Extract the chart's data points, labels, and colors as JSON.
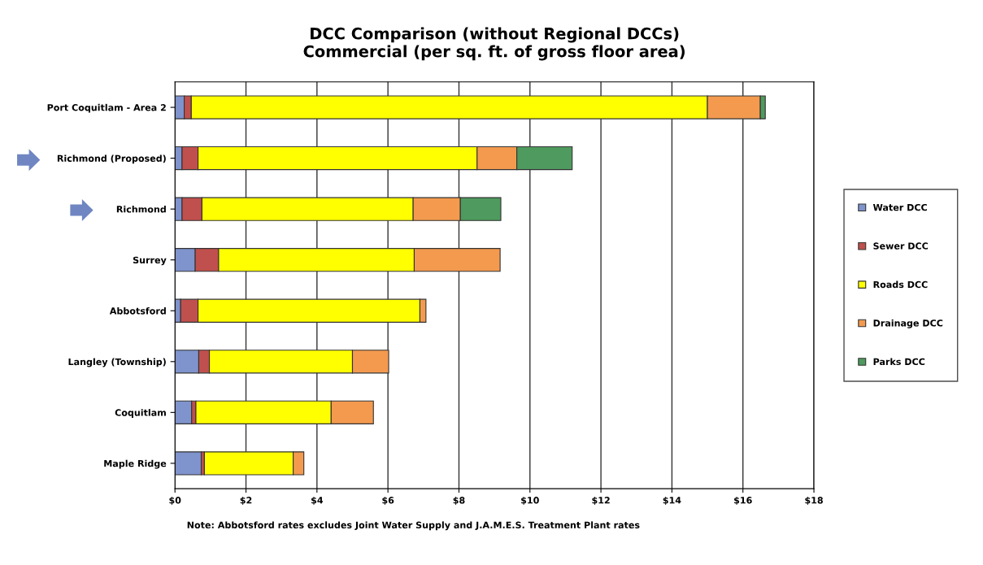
{
  "chart_data": {
    "type": "bar",
    "orientation": "horizontal",
    "stacked": true,
    "title": "DCC Comparison (without Regional DCCs)\nCommercial (per sq. ft. of gross floor area)",
    "categories": [
      "Port Coquitlam - Area 2",
      "Richmond (Proposed)",
      "Richmond",
      "Surrey",
      "Abbotsford",
      "Langley (Township)",
      "Coquitlam",
      "Maple Ridge"
    ],
    "series": [
      {
        "name": "Water DCC",
        "color": "#7f93cc",
        "values": [
          0.26,
          0.2,
          0.2,
          0.57,
          0.16,
          0.67,
          0.47,
          0.74
        ]
      },
      {
        "name": "Sewer DCC",
        "color": "#c0504d",
        "values": [
          0.2,
          0.45,
          0.56,
          0.66,
          0.49,
          0.3,
          0.12,
          0.09
        ]
      },
      {
        "name": "Roads DCC",
        "color": "#ffff00",
        "values": [
          14.54,
          7.86,
          5.95,
          5.51,
          6.25,
          4.03,
          3.81,
          2.5
        ]
      },
      {
        "name": "Drainage DCC",
        "color": "#f39a4f",
        "values": [
          1.49,
          1.12,
          1.33,
          2.42,
          0.17,
          1.02,
          1.19,
          0.3
        ]
      },
      {
        "name": "Parks DCC",
        "color": "#4f9a5e",
        "values": [
          0.14,
          1.56,
          1.14,
          null,
          null,
          null,
          null,
          null
        ]
      }
    ],
    "xlim": [
      0,
      18
    ],
    "xticks": [
      {
        "value": 0,
        "label": "$0"
      },
      {
        "value": 2,
        "label": "$2"
      },
      {
        "value": 4,
        "label": "$4"
      },
      {
        "value": 6,
        "label": "$6"
      },
      {
        "value": 8,
        "label": "$8"
      },
      {
        "value": 10,
        "label": "$10"
      },
      {
        "value": 12,
        "label": "$12"
      },
      {
        "value": 14,
        "label": "$14"
      },
      {
        "value": 16,
        "label": "$16"
      },
      {
        "value": 18,
        "label": "$18"
      }
    ],
    "grid": "x",
    "legend": "right",
    "annotations": [
      "Note: Abbotsford rates excludes Joint Water Supply and J.A.M.E.S. Treatment Plant rates"
    ]
  }
}
